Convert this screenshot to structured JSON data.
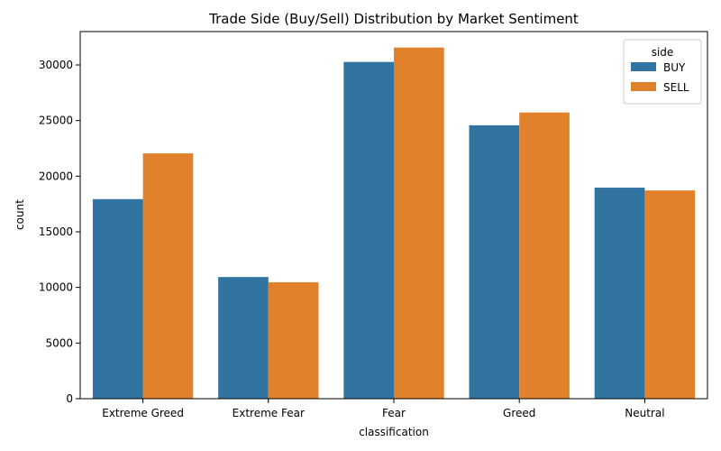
{
  "chart_data": {
    "type": "bar",
    "title": "Trade Side (Buy/Sell) Distribution by Market Sentiment",
    "xlabel": "classification",
    "ylabel": "count",
    "categories": [
      "Extreme Greed",
      "Extreme Fear",
      "Fear",
      "Greed",
      "Neutral"
    ],
    "series": [
      {
        "name": "BUY",
        "color": "#3274a1",
        "values": [
          17940,
          10935,
          30270,
          24576,
          18969
        ]
      },
      {
        "name": "SELL",
        "color": "#e1812c",
        "values": [
          22052,
          10465,
          31567,
          25727,
          18717
        ]
      }
    ],
    "ylim": [
      0,
      33000
    ],
    "yticks": [
      0,
      5000,
      10000,
      15000,
      20000,
      25000,
      30000
    ],
    "legend": {
      "title": "side",
      "placement": "top-right"
    },
    "grid": false
  }
}
